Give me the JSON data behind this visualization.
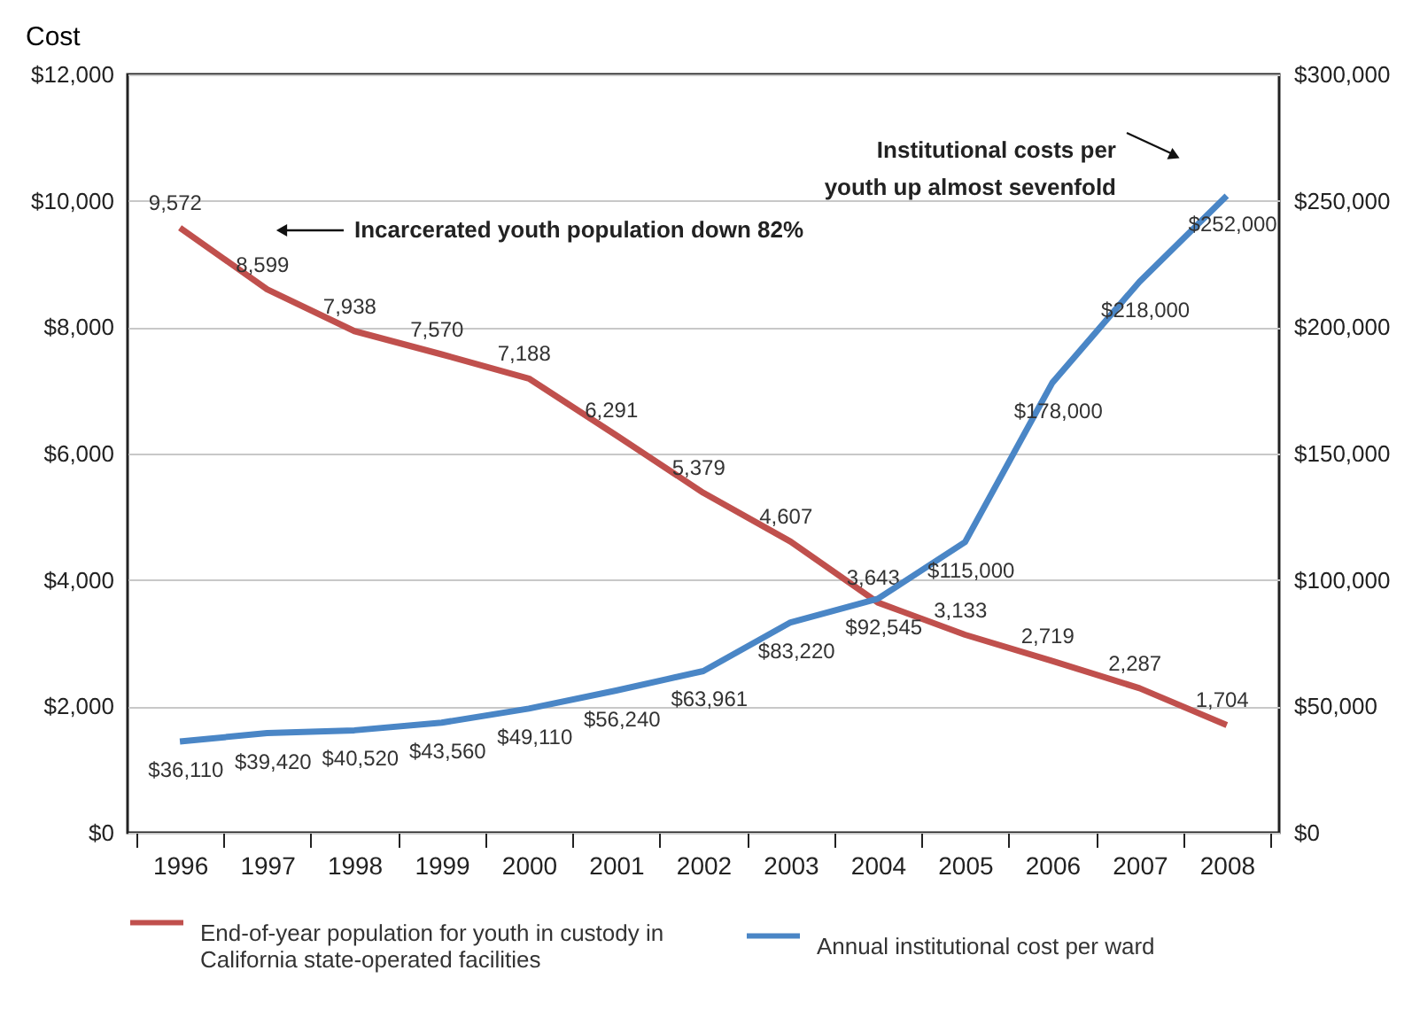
{
  "chart_data": {
    "type": "line",
    "ylabel": "Cost",
    "categories": [
      "1996",
      "1997",
      "1998",
      "1999",
      "2000",
      "2001",
      "2002",
      "2003",
      "2004",
      "2005",
      "2006",
      "2007",
      "2008"
    ],
    "series": [
      {
        "name": "End-of-year population for youth in custody in California state-operated facilities",
        "color": "#c0504d",
        "values": [
          9572,
          8599,
          7938,
          7570,
          7188,
          6291,
          5379,
          4607,
          3643,
          3133,
          2719,
          2287,
          1704
        ],
        "value_labels": [
          "9,572",
          "8,599",
          "7,938",
          "7,570",
          "7,188",
          "6,291",
          "5,379",
          "4,607",
          "3,643",
          "3,133",
          "2,719",
          "2,287",
          "1,704"
        ]
      },
      {
        "name": "Annual institutional cost per ward",
        "color": "#4a86c6",
        "axis": "y2",
        "values": [
          36110,
          39420,
          40520,
          43560,
          49110,
          56240,
          63961,
          83220,
          92545,
          115000,
          178000,
          218000,
          252000
        ],
        "value_labels": [
          "$36,110",
          "$39,420",
          "$40,520",
          "$43,560",
          "$49,110",
          "$56,240",
          "$63,961",
          "$83,220",
          "$92,545",
          "$115,000",
          "$178,000",
          "$218,000",
          "$252,000"
        ]
      }
    ],
    "ylim": [
      0,
      12000
    ],
    "yticks": [
      {
        "value": 0,
        "label": "$0"
      },
      {
        "value": 2000,
        "label": "$2,000"
      },
      {
        "value": 4000,
        "label": "$4,000"
      },
      {
        "value": 6000,
        "label": "$6,000"
      },
      {
        "value": 8000,
        "label": "$8,000"
      },
      {
        "value": 10000,
        "label": "$10,000"
      },
      {
        "value": 12000,
        "label": "$12,000"
      }
    ],
    "y2lim": [
      0,
      300000
    ],
    "y2ticks": [
      {
        "value": 0,
        "label": "$0"
      },
      {
        "value": 50000,
        "label": "$50,000"
      },
      {
        "value": 100000,
        "label": "$100,000"
      },
      {
        "value": 150000,
        "label": "$150,000"
      },
      {
        "value": 200000,
        "label": "$200,000"
      },
      {
        "value": 250000,
        "label": "$250,000"
      },
      {
        "value": 300000,
        "label": "$300,000"
      }
    ],
    "grid": "y",
    "legend": "bottom",
    "annotations": [
      "Incarcerated youth population down 82%",
      "Institutional costs per youth up almost sevenfold"
    ]
  }
}
